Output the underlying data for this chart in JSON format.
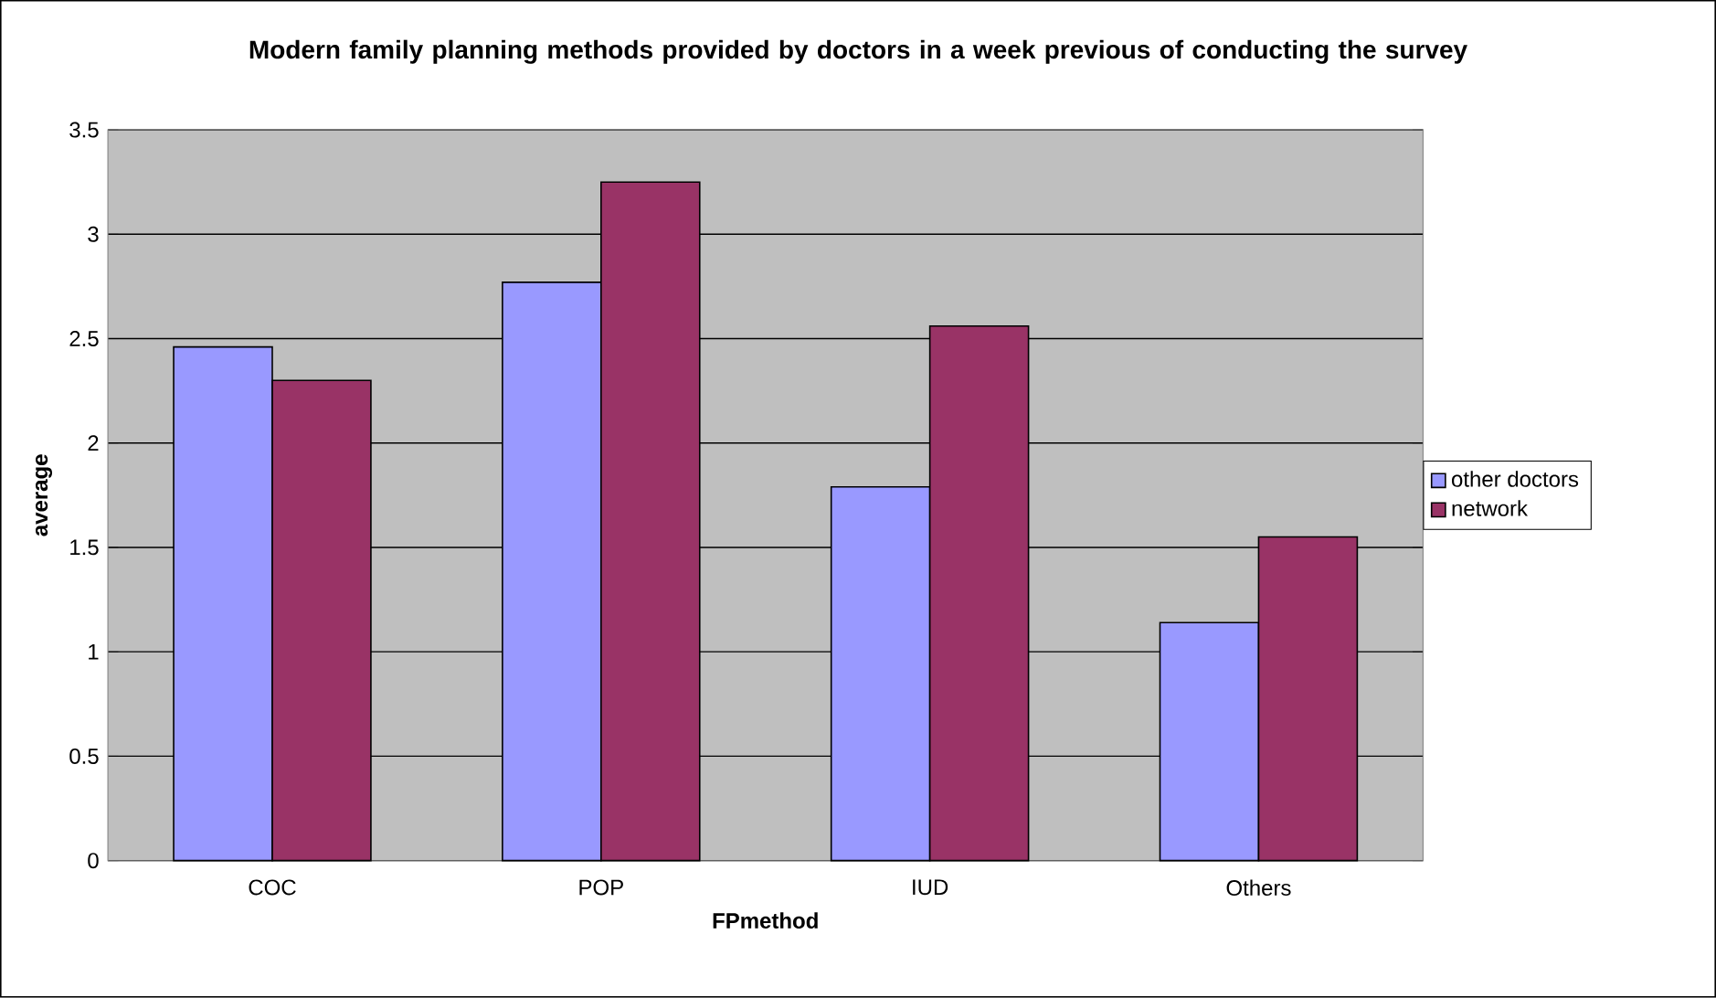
{
  "chart_data": {
    "type": "bar",
    "title": "Modern family planning methods provided by doctors in a  week previous of conducting the survey",
    "xlabel": "FPmethod",
    "ylabel": "average",
    "categories": [
      "COC",
      "POP",
      "IUD",
      "Others"
    ],
    "series": [
      {
        "name": "other doctors",
        "color": "#9999ff",
        "values": [
          2.46,
          2.77,
          1.79,
          1.14
        ]
      },
      {
        "name": "network",
        "color": "#993366",
        "values": [
          2.3,
          3.25,
          2.56,
          1.55
        ]
      }
    ],
    "ylim": [
      0,
      3.5
    ],
    "yticks": [
      0,
      0.5,
      1,
      1.5,
      2,
      2.5,
      3,
      3.5
    ],
    "grid": "y",
    "legend": "right"
  }
}
